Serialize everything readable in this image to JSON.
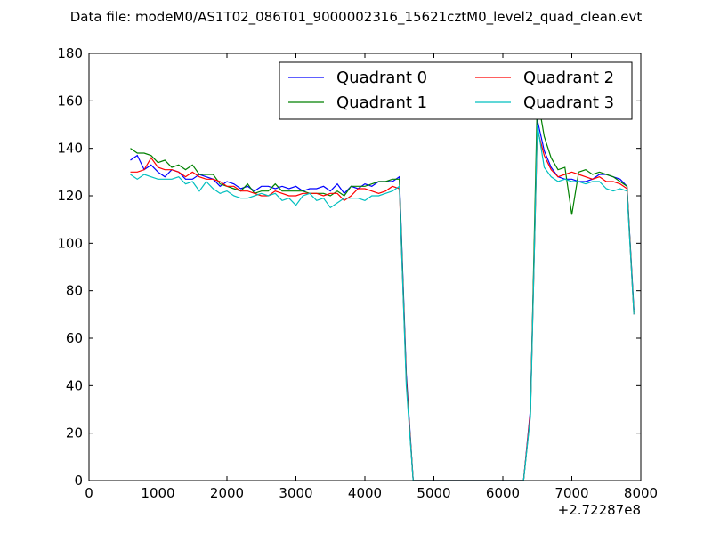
{
  "chart_data": {
    "type": "line",
    "title": "Data file: modeM0/AS1T02_086T01_9000002316_15621cztM0_level2_quad_clean.evt",
    "xlabel": "",
    "ylabel": "",
    "x_offset_label": "+2.72287e8",
    "xlim": [
      0,
      8000
    ],
    "ylim": [
      0,
      180
    ],
    "xticks": [
      "0",
      "1000",
      "2000",
      "3000",
      "4000",
      "5000",
      "6000",
      "7000",
      "8000"
    ],
    "yticks": [
      "0",
      "20",
      "40",
      "60",
      "80",
      "100",
      "120",
      "140",
      "160",
      "180"
    ],
    "grid": false,
    "legend_position": "top-right",
    "x": [
      600,
      700,
      800,
      900,
      1000,
      1100,
      1200,
      1300,
      1400,
      1500,
      1600,
      1700,
      1800,
      1900,
      2000,
      2100,
      2200,
      2300,
      2400,
      2500,
      2600,
      2700,
      2800,
      2900,
      3000,
      3100,
      3200,
      3300,
      3400,
      3500,
      3600,
      3700,
      3800,
      3900,
      4000,
      4100,
      4200,
      4300,
      4400,
      4500,
      4600,
      4700,
      4800,
      4900,
      5000,
      5100,
      5200,
      5300,
      5400,
      5500,
      5600,
      5700,
      5800,
      5900,
      6000,
      6100,
      6200,
      6300,
      6400,
      6500,
      6600,
      6700,
      6800,
      6900,
      7000,
      7100,
      7200,
      7300,
      7400,
      7500,
      7600,
      7700,
      7800,
      7900
    ],
    "series": [
      {
        "name": "Quadrant 0",
        "color": "#0000ff",
        "values": [
          135,
          137,
          131,
          133,
          130,
          128,
          131,
          130,
          127,
          127,
          129,
          128,
          127,
          124,
          126,
          125,
          123,
          124,
          122,
          124,
          124,
          123,
          124,
          123,
          124,
          122,
          123,
          123,
          124,
          122,
          125,
          121,
          124,
          123,
          125,
          124,
          126,
          126,
          126,
          128,
          45,
          0,
          0,
          0,
          0,
          0,
          0,
          0,
          0,
          0,
          0,
          0,
          0,
          0,
          0,
          0,
          0,
          0,
          30,
          152,
          139,
          132,
          128,
          127,
          127,
          126,
          126,
          127,
          129,
          129,
          128,
          127,
          124,
          72
        ]
      },
      {
        "name": "Quadrant 1",
        "color": "#008000",
        "values": [
          140,
          138,
          138,
          137,
          134,
          135,
          132,
          133,
          131,
          133,
          129,
          129,
          129,
          125,
          124,
          123,
          122,
          125,
          121,
          122,
          122,
          125,
          122,
          122,
          122,
          122,
          121,
          121,
          121,
          120,
          122,
          120,
          124,
          124,
          124,
          125,
          126,
          126,
          127,
          127,
          43,
          0,
          0,
          0,
          0,
          0,
          0,
          0,
          0,
          0,
          0,
          0,
          0,
          0,
          0,
          0,
          0,
          0,
          28,
          162,
          145,
          136,
          131,
          132,
          112,
          130,
          131,
          129,
          130,
          129,
          128,
          126,
          124,
          71
        ]
      },
      {
        "name": "Quadrant 2",
        "color": "#ff0000",
        "values": [
          130,
          130,
          131,
          136,
          132,
          131,
          131,
          130,
          128,
          130,
          128,
          127,
          127,
          126,
          124,
          124,
          122,
          122,
          121,
          120,
          120,
          122,
          121,
          120,
          120,
          121,
          121,
          121,
          120,
          121,
          121,
          118,
          120,
          123,
          123,
          122,
          121,
          122,
          124,
          123,
          42,
          0,
          0,
          0,
          0,
          0,
          0,
          0,
          0,
          0,
          0,
          0,
          0,
          0,
          0,
          0,
          0,
          0,
          29,
          148,
          137,
          131,
          128,
          129,
          130,
          129,
          128,
          127,
          128,
          126,
          126,
          125,
          123,
          70
        ]
      },
      {
        "name": "Quadrant 3",
        "color": "#00bfbf",
        "values": [
          129,
          127,
          129,
          128,
          127,
          127,
          127,
          128,
          125,
          126,
          122,
          126,
          123,
          121,
          122,
          120,
          119,
          119,
          120,
          121,
          120,
          121,
          118,
          119,
          116,
          120,
          121,
          118,
          119,
          115,
          117,
          119,
          119,
          119,
          118,
          120,
          120,
          121,
          122,
          124,
          40,
          0,
          0,
          0,
          0,
          0,
          0,
          0,
          0,
          0,
          0,
          0,
          0,
          0,
          0,
          0,
          0,
          0,
          27,
          150,
          132,
          128,
          126,
          127,
          126,
          126,
          125,
          126,
          126,
          123,
          122,
          123,
          122,
          70
        ]
      }
    ]
  }
}
